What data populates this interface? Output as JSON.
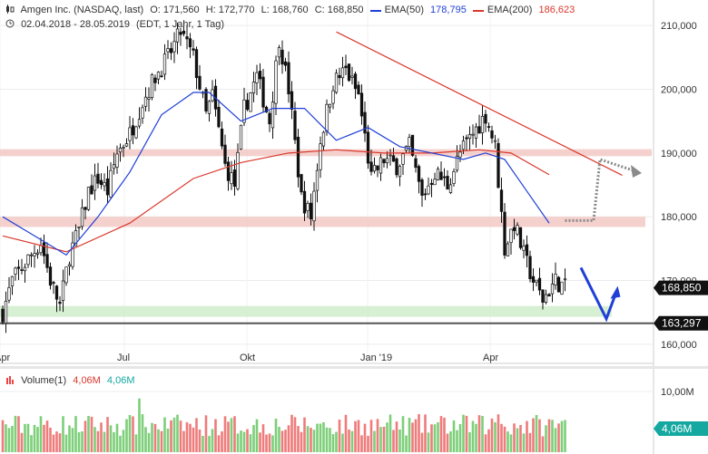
{
  "header": {
    "instrument": "Amgen Inc. (NASDAQ, last)",
    "open": "O: 171,560",
    "high": "H: 172,770",
    "low": "L: 168,760",
    "close": "C: 168,850",
    "ema50_label": "EMA(50)",
    "ema50_value": "178,795",
    "ema200_label": "EMA(200)",
    "ema200_value": "186,623",
    "range": "02.04.2018 - 28.05.2019",
    "settings": "(EDT, 1 Jahr, 1 Tag)"
  },
  "volume_header": {
    "label": "Volume(1)",
    "value1": "4,06M",
    "value2": "4,06M"
  },
  "colors": {
    "ema50": "#1f3fd6",
    "ema200": "#d9382c",
    "candle": "#111111",
    "support_band": "#f3c6c2",
    "target_band": "#cdebc8",
    "vol_up": "#7dcf79",
    "vol_down": "#ef7b7b",
    "price_tag": "#111111",
    "vol_tag": "#14a8a0"
  },
  "chart_data": {
    "type": "candlestick",
    "title": "Amgen Inc. (NASDAQ, last)",
    "x_tick_labels": [
      "Apr",
      "Jul",
      "Okt",
      "Jan '19",
      "Apr"
    ],
    "y_tick_labels": [
      "160,000",
      "170,000",
      "180,000",
      "190,000",
      "200,000",
      "210,000"
    ],
    "ylim": [
      157,
      214
    ],
    "last_price_tag": "168,850",
    "level_tag": "163,297",
    "volume_tick_label": "10,00M",
    "volume_tag": "4,06M",
    "price_path": [
      {
        "t": 0,
        "p": 165
      },
      {
        "t": 3,
        "p": 170
      },
      {
        "t": 6,
        "p": 172
      },
      {
        "t": 9,
        "p": 174
      },
      {
        "t": 12,
        "p": 176
      },
      {
        "t": 15,
        "p": 170
      },
      {
        "t": 18,
        "p": 166
      },
      {
        "t": 21,
        "p": 174
      },
      {
        "t": 24,
        "p": 178
      },
      {
        "t": 27,
        "p": 184
      },
      {
        "t": 30,
        "p": 186
      },
      {
        "t": 33,
        "p": 184
      },
      {
        "t": 36,
        "p": 190
      },
      {
        "t": 40,
        "p": 193
      },
      {
        "t": 44,
        "p": 198
      },
      {
        "t": 48,
        "p": 202
      },
      {
        "t": 52,
        "p": 205
      },
      {
        "t": 56,
        "p": 209
      },
      {
        "t": 60,
        "p": 205
      },
      {
        "t": 64,
        "p": 196
      },
      {
        "t": 66,
        "p": 199
      },
      {
        "t": 70,
        "p": 188
      },
      {
        "t": 73,
        "p": 185
      },
      {
        "t": 76,
        "p": 197
      },
      {
        "t": 80,
        "p": 202
      },
      {
        "t": 84,
        "p": 195
      },
      {
        "t": 87,
        "p": 208
      },
      {
        "t": 90,
        "p": 200
      },
      {
        "t": 94,
        "p": 183
      },
      {
        "t": 97,
        "p": 180
      },
      {
        "t": 100,
        "p": 192
      },
      {
        "t": 104,
        "p": 201
      },
      {
        "t": 108,
        "p": 203
      },
      {
        "t": 112,
        "p": 199
      },
      {
        "t": 116,
        "p": 186
      },
      {
        "t": 120,
        "p": 189
      },
      {
        "t": 124,
        "p": 188
      },
      {
        "t": 128,
        "p": 191
      },
      {
        "t": 132,
        "p": 183
      },
      {
        "t": 136,
        "p": 187
      },
      {
        "t": 140,
        "p": 185
      },
      {
        "t": 144,
        "p": 190
      },
      {
        "t": 148,
        "p": 193
      },
      {
        "t": 152,
        "p": 196
      },
      {
        "t": 155,
        "p": 191
      },
      {
        "t": 158,
        "p": 175
      },
      {
        "t": 161,
        "p": 179
      },
      {
        "t": 164,
        "p": 174
      },
      {
        "t": 167,
        "p": 170
      },
      {
        "t": 170,
        "p": 167
      },
      {
        "t": 174,
        "p": 170
      },
      {
        "t": 177,
        "p": 168.85
      }
    ],
    "ema50_path": [
      {
        "t": 0,
        "p": 180
      },
      {
        "t": 10,
        "p": 177
      },
      {
        "t": 20,
        "p": 174
      },
      {
        "t": 30,
        "p": 180
      },
      {
        "t": 40,
        "p": 187
      },
      {
        "t": 50,
        "p": 196
      },
      {
        "t": 60,
        "p": 199.5
      },
      {
        "t": 65,
        "p": 199.5
      },
      {
        "t": 75,
        "p": 195
      },
      {
        "t": 85,
        "p": 197
      },
      {
        "t": 95,
        "p": 197
      },
      {
        "t": 105,
        "p": 192
      },
      {
        "t": 115,
        "p": 194
      },
      {
        "t": 125,
        "p": 191
      },
      {
        "t": 135,
        "p": 190
      },
      {
        "t": 145,
        "p": 189
      },
      {
        "t": 152,
        "p": 190
      },
      {
        "t": 158,
        "p": 189
      },
      {
        "t": 165,
        "p": 184
      },
      {
        "t": 172,
        "p": 179
      }
    ],
    "ema200_path": [
      {
        "t": 0,
        "p": 177
      },
      {
        "t": 20,
        "p": 174.5
      },
      {
        "t": 40,
        "p": 179
      },
      {
        "t": 60,
        "p": 186
      },
      {
        "t": 75,
        "p": 188.5
      },
      {
        "t": 90,
        "p": 190
      },
      {
        "t": 105,
        "p": 190.5
      },
      {
        "t": 120,
        "p": 190
      },
      {
        "t": 135,
        "p": 190
      },
      {
        "t": 150,
        "p": 190.5
      },
      {
        "t": 160,
        "p": 190
      },
      {
        "t": 172,
        "p": 186.6
      }
    ],
    "trendline": [
      {
        "t": 105,
        "p": 209
      },
      {
        "t": 195,
        "p": 186.5
      }
    ],
    "support_band": [
      178.4,
      180
    ],
    "resistance_band": [
      189.5,
      190.6
    ],
    "target_band": [
      164.3,
      166
    ],
    "horizontal_level": 163.297,
    "blue_arrow": [
      {
        "t": 182,
        "p": 172
      },
      {
        "t": 190,
        "p": 164
      },
      {
        "t": 193,
        "p": 168
      }
    ],
    "gray_dotted_path": [
      {
        "t": 177,
        "p": 179.4
      },
      {
        "t": 186,
        "p": 179.4
      },
      {
        "t": 188,
        "p": 189
      },
      {
        "t": 200,
        "p": 187
      }
    ],
    "volume_max_label": 10
  }
}
